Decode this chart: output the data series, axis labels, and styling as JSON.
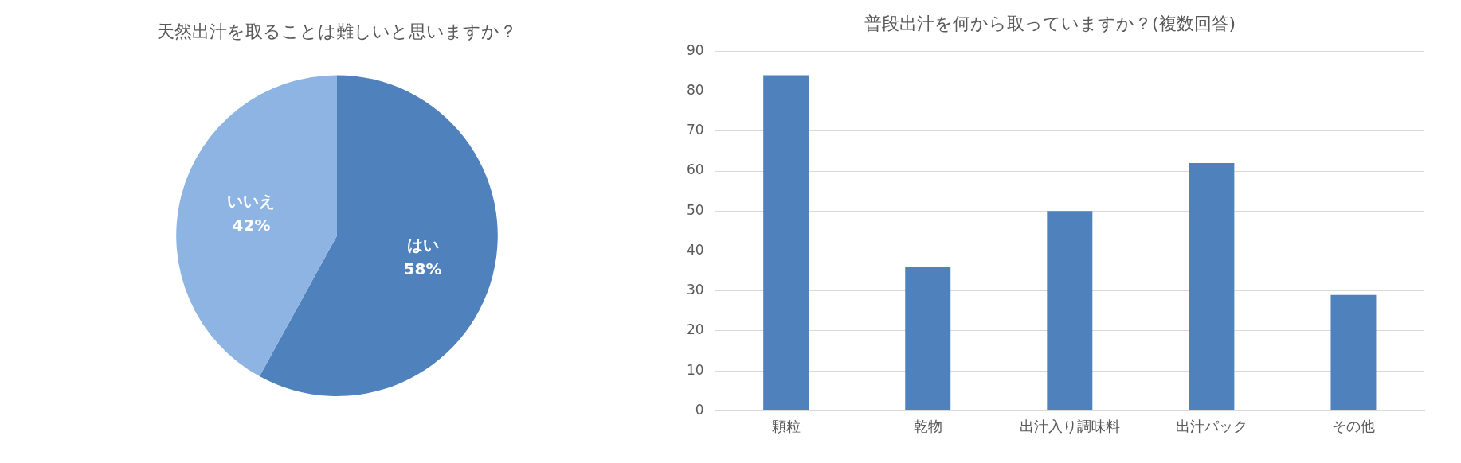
{
  "chart_data": [
    {
      "type": "pie",
      "title": "天然出汁を取ることは難しいと思いますか？",
      "categories": [
        "はい",
        "いいえ"
      ],
      "values": [
        58,
        42
      ],
      "colors": [
        "#4f81bd",
        "#8eb4e3"
      ],
      "value_labels": [
        "58%",
        "42%"
      ],
      "legend": false
    },
    {
      "type": "bar",
      "title": "普段出汁を何から取っていますか？(複数回答)",
      "categories": [
        "顆粒",
        "乾物",
        "出汁入り調味料",
        "出汁パック",
        "その他"
      ],
      "values": [
        84,
        36,
        50,
        62,
        29
      ],
      "color": "#4f81bd",
      "ylim": [
        0,
        90
      ],
      "yticks": [
        0,
        10,
        20,
        30,
        40,
        50,
        60,
        70,
        80,
        90
      ],
      "grid": "y",
      "legend": false
    }
  ]
}
